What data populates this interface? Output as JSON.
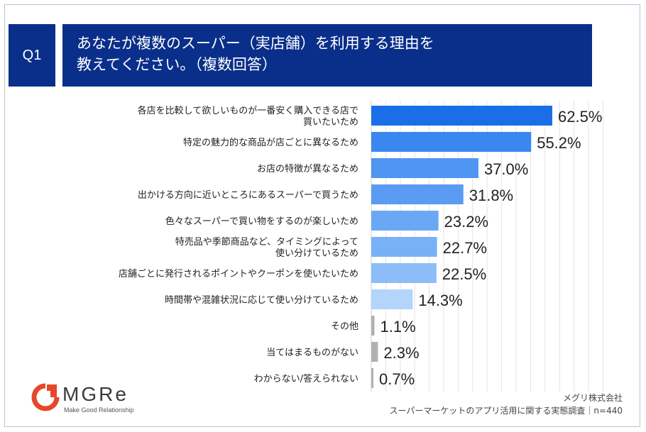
{
  "question": {
    "badge": "Q1",
    "text": "あなたが複数のスーパー（実店舗）を利用する理由を\n教えてください。（複数回答）"
  },
  "chart_data": {
    "type": "bar",
    "orientation": "horizontal",
    "unit": "%",
    "xlim": [
      0,
      100
    ],
    "grid": true,
    "categories": [
      "各店を比較して欲しいものが一番安く購入できる店で\n買いたいため",
      "特定の魅力的な商品が店ごとに異なるため",
      "お店の特徴が異なるため",
      "出かける方向に近いところにあるスーパーで買うため",
      "色々なスーパーで買い物をするのが楽しいため",
      "特売品や季節商品など、タイミングによって\n使い分けているため",
      "店舗ごとに発行されるポイントやクーポンを使いたいため",
      "時間帯や混雑状況に応じて使い分けているため",
      "その他",
      "当てはまるものがない",
      "わからない/答えられない"
    ],
    "values": [
      62.5,
      55.2,
      37.0,
      31.8,
      23.2,
      22.7,
      22.5,
      14.3,
      1.1,
      2.3,
      0.7
    ],
    "value_labels": [
      "62.5%",
      "55.2%",
      "37.0%",
      "31.8%",
      "23.2%",
      "22.7%",
      "22.5%",
      "14.3%",
      "1.1%",
      "2.3%",
      "0.7%"
    ],
    "colors": [
      "#1a6fe8",
      "#3a87ef",
      "#4f95f2",
      "#5a9cf3",
      "#6aa8f5",
      "#79b1f6",
      "#8cbdf8",
      "#b3d4fb",
      "#b0b0b0",
      "#b0b0b0",
      "#b0b0b0"
    ]
  },
  "logo": {
    "word": "MGRe",
    "tagline": "Make Good Relationship",
    "colors": {
      "mark": "#e8472a"
    }
  },
  "source": {
    "company": "メグリ株式会社",
    "survey": "スーパーマーケットのアプリ活用に関する実態調査｜n=440"
  }
}
